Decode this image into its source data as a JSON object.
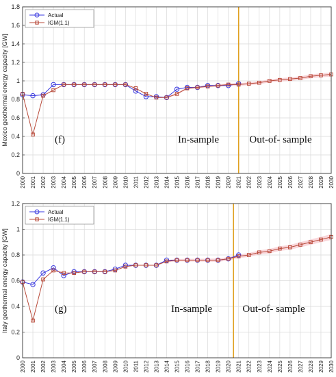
{
  "chart_data": [
    {
      "type": "line",
      "ylabel": "Mexico geothermal energy capacity [GW]",
      "ylim": [
        0,
        1.8
      ],
      "yticks": [
        0,
        0.2,
        0.4,
        0.6,
        0.8,
        1,
        1.2,
        1.4,
        1.6,
        1.8
      ],
      "xlim": [
        2000,
        2030
      ],
      "categories": [
        "2000",
        "2001",
        "2002",
        "2003",
        "2004",
        "2005",
        "2006",
        "2007",
        "2008",
        "2009",
        "2010",
        "2011",
        "2012",
        "2013",
        "2014",
        "2015",
        "2016",
        "2017",
        "2018",
        "2019",
        "2020",
        "2021",
        "2022",
        "2023",
        "2024",
        "2025",
        "2026",
        "2027",
        "2028",
        "2029",
        "2030"
      ],
      "grid": true,
      "legend": "top-left",
      "split_x": 2021,
      "panel_label": "(f)",
      "insample_label": "In-sample",
      "outsample_label": "Out-of- sample",
      "series": [
        {
          "name": "Actual",
          "color": "#3a3ae0",
          "marker": "circle",
          "x": [
            2000,
            2001,
            2002,
            2003,
            2004,
            2005,
            2006,
            2007,
            2008,
            2009,
            2010,
            2011,
            2012,
            2013,
            2014,
            2015,
            2016,
            2017,
            2018,
            2019,
            2020,
            2021
          ],
          "values": [
            0.85,
            0.84,
            0.85,
            0.96,
            0.96,
            0.96,
            0.96,
            0.96,
            0.96,
            0.96,
            0.96,
            0.89,
            0.83,
            0.83,
            0.82,
            0.91,
            0.93,
            0.93,
            0.95,
            0.95,
            0.95,
            0.97
          ]
        },
        {
          "name": "IGM(1,1)",
          "color": "#b84a3a",
          "marker": "square",
          "x": [
            2000,
            2001,
            2002,
            2003,
            2004,
            2005,
            2006,
            2007,
            2008,
            2009,
            2010,
            2011,
            2012,
            2013,
            2014,
            2015,
            2016,
            2017,
            2018,
            2019,
            2020,
            2021,
            2022,
            2023,
            2024,
            2025,
            2026,
            2027,
            2028,
            2029,
            2030
          ],
          "values": [
            0.86,
            0.42,
            0.84,
            0.9,
            0.96,
            0.96,
            0.96,
            0.96,
            0.96,
            0.96,
            0.96,
            0.92,
            0.86,
            0.82,
            0.82,
            0.86,
            0.92,
            0.93,
            0.94,
            0.95,
            0.96,
            0.96,
            0.97,
            0.98,
            1.0,
            1.01,
            1.02,
            1.03,
            1.05,
            1.06,
            1.07
          ]
        }
      ]
    },
    {
      "type": "line",
      "ylabel": "Italy geothermal energy capacity [GW]",
      "ylim": [
        0,
        1.2
      ],
      "yticks": [
        0,
        0.2,
        0.4,
        0.6,
        0.8,
        1,
        1.2
      ],
      "xlim": [
        2000,
        2030
      ],
      "categories": [
        "2000",
        "2001",
        "2002",
        "2003",
        "2004",
        "2005",
        "2006",
        "2007",
        "2008",
        "2009",
        "2010",
        "2011",
        "2012",
        "2013",
        "2014",
        "2015",
        "2016",
        "2017",
        "2018",
        "2019",
        "2020",
        "2021",
        "2022",
        "2023",
        "2024",
        "2025",
        "2026",
        "2027",
        "2028",
        "2029",
        "2030"
      ],
      "grid": true,
      "legend": "top-left",
      "split_x": 2020.5,
      "panel_label": "(g)",
      "insample_label": "In-sample",
      "outsample_label": "Out-of- sample",
      "series": [
        {
          "name": "Actual",
          "color": "#3a3ae0",
          "marker": "circle",
          "x": [
            2000,
            2001,
            2002,
            2003,
            2004,
            2005,
            2006,
            2007,
            2008,
            2009,
            2010,
            2011,
            2012,
            2013,
            2014,
            2015,
            2016,
            2017,
            2018,
            2019,
            2020,
            2021
          ],
          "values": [
            0.59,
            0.57,
            0.66,
            0.7,
            0.64,
            0.67,
            0.67,
            0.67,
            0.67,
            0.69,
            0.72,
            0.72,
            0.72,
            0.72,
            0.76,
            0.76,
            0.76,
            0.76,
            0.76,
            0.76,
            0.77,
            0.8
          ]
        },
        {
          "name": "IGM(1,1)",
          "color": "#b84a3a",
          "marker": "square",
          "x": [
            2000,
            2001,
            2002,
            2003,
            2004,
            2005,
            2006,
            2007,
            2008,
            2009,
            2010,
            2011,
            2012,
            2013,
            2014,
            2015,
            2016,
            2017,
            2018,
            2019,
            2020,
            2021,
            2022,
            2023,
            2024,
            2025,
            2026,
            2027,
            2028,
            2029,
            2030
          ],
          "values": [
            0.59,
            0.29,
            0.61,
            0.68,
            0.66,
            0.66,
            0.67,
            0.67,
            0.67,
            0.68,
            0.71,
            0.72,
            0.72,
            0.72,
            0.75,
            0.76,
            0.76,
            0.76,
            0.76,
            0.76,
            0.77,
            0.79,
            0.8,
            0.82,
            0.83,
            0.85,
            0.86,
            0.88,
            0.9,
            0.92,
            0.94
          ]
        }
      ]
    }
  ]
}
